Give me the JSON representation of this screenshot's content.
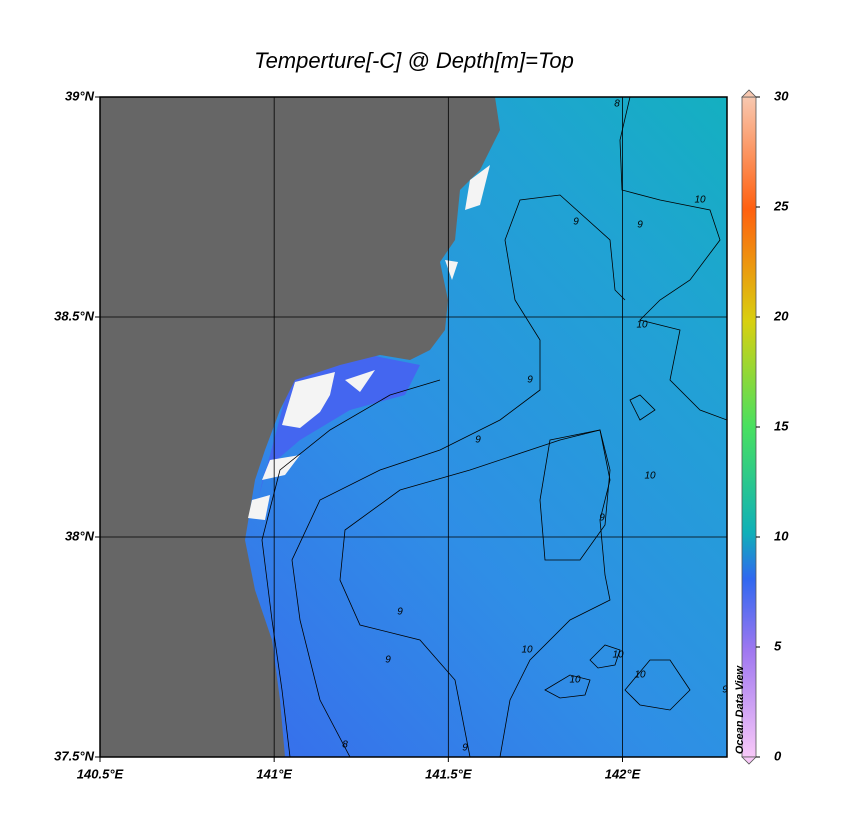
{
  "map": {
    "title": "Temperture[-C] @ Depth[m]=Top",
    "xlim": [
      140.5,
      142.3
    ],
    "ylim": [
      37.5,
      39
    ],
    "xticks": [
      {
        "value": 140.5,
        "label": "140.5°E"
      },
      {
        "value": 141,
        "label": "141°E"
      },
      {
        "value": 141.5,
        "label": "141.5°E"
      },
      {
        "value": 142,
        "label": "142°E"
      }
    ],
    "yticks": [
      {
        "value": 37.5,
        "label": "37.5°N"
      },
      {
        "value": 38,
        "label": "38°N"
      },
      {
        "value": 38.5,
        "label": "38.5°N"
      },
      {
        "value": 39,
        "label": "39°N"
      }
    ],
    "grid": true,
    "colorbar": {
      "lim": [
        0,
        30
      ],
      "ticks": [
        0,
        5,
        10,
        15,
        20,
        25,
        30
      ]
    },
    "watermark": "Ocean Data View",
    "contour_labels": [
      "8",
      "9",
      "9",
      "9",
      "10",
      "10",
      "10",
      "10",
      "9",
      "9",
      "9",
      "9",
      "10",
      "10",
      "10",
      "8",
      "9",
      "9"
    ]
  }
}
